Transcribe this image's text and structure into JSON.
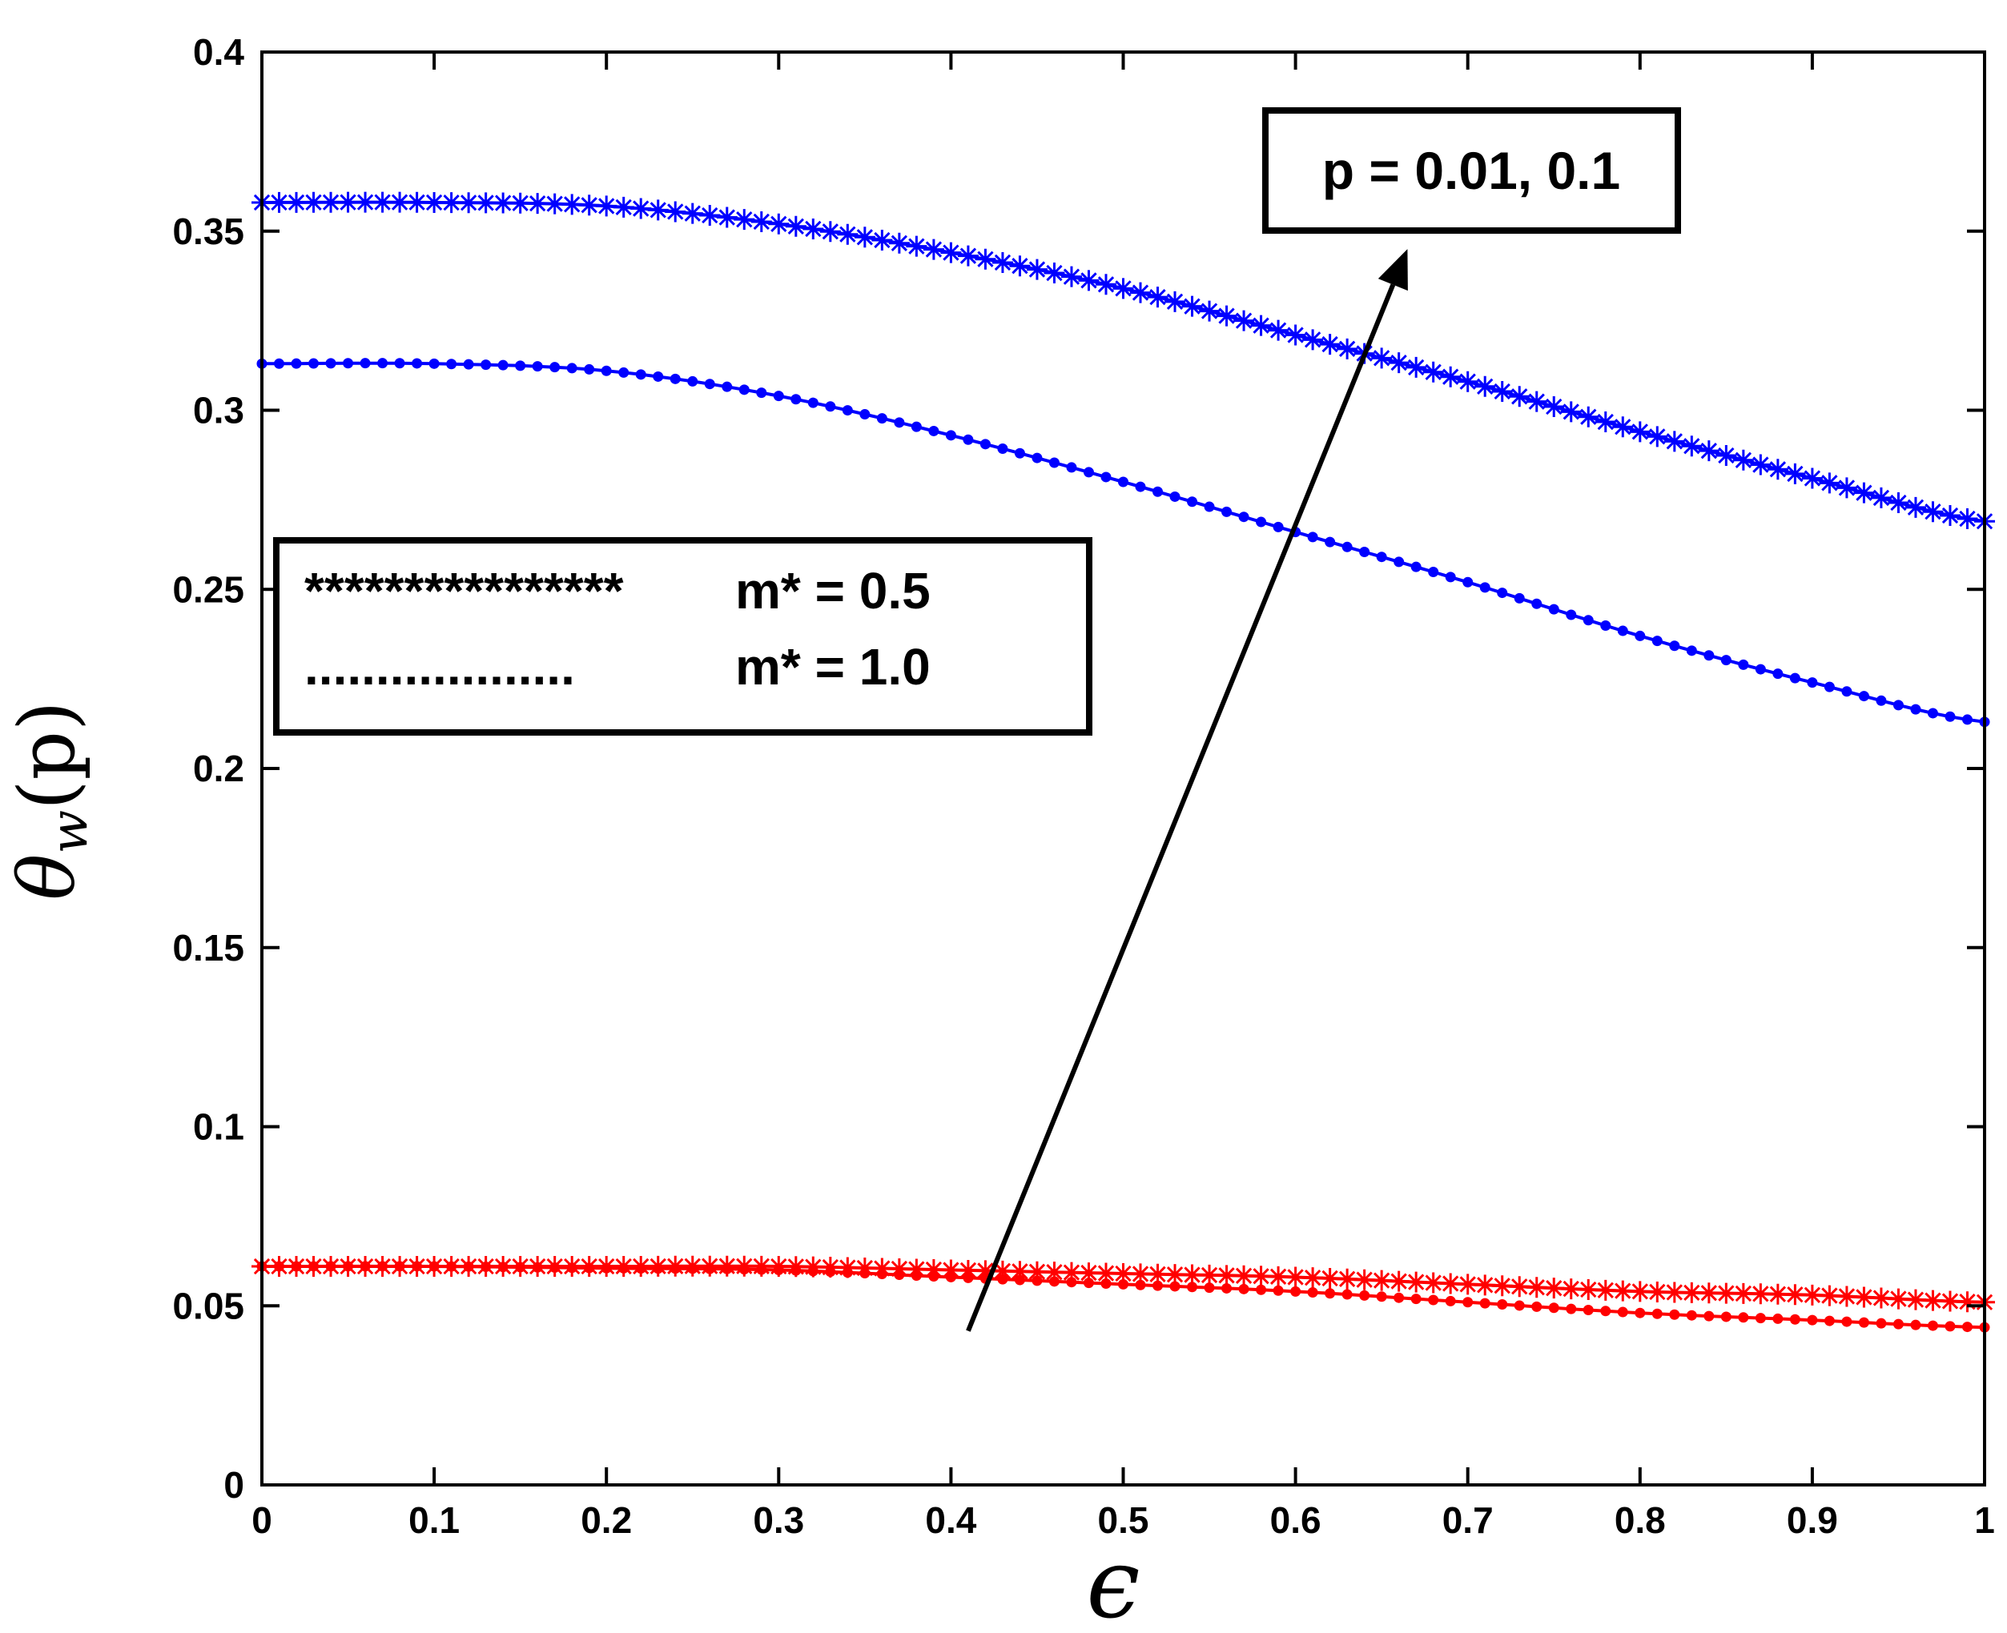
{
  "chart_data": {
    "type": "line",
    "title": "",
    "xlabel": "ϵ",
    "ylabel": "θ",
    "ylabel_sub": "w",
    "ylabel_arg": "(p)",
    "xlim": [
      0,
      1
    ],
    "ylim": [
      0,
      0.4
    ],
    "xticks": [
      0,
      0.1,
      0.2,
      0.3,
      0.4,
      0.5,
      0.6,
      0.7,
      0.8,
      0.9,
      1
    ],
    "xtick_labels": [
      "0",
      "0.1",
      "0.2",
      "0.3",
      "0.4",
      "0.5",
      "0.6",
      "0.7",
      "0.8",
      "0.9",
      "1"
    ],
    "yticks": [
      0,
      0.05,
      0.1,
      0.15,
      0.2,
      0.25,
      0.3,
      0.35,
      0.4
    ],
    "ytick_labels": [
      "0",
      "0.05",
      "0.1",
      "0.15",
      "0.2",
      "0.25",
      "0.3",
      "0.35",
      "0.4"
    ],
    "grid": false,
    "legend": {
      "position": "left-middle",
      "entries": [
        {
          "marker_text": "****************",
          "label": "m* = 0.5"
        },
        {
          "marker_text": "...................",
          "label": "m* = 1.0"
        }
      ]
    },
    "annotation": {
      "text": "p = 0.01, 0.1",
      "arrow_from": [
        0.41,
        0.043
      ],
      "arrow_to": [
        0.665,
        0.345
      ]
    },
    "x": [
      0,
      0.1,
      0.2,
      0.3,
      0.4,
      0.5,
      0.6,
      0.7,
      0.8,
      0.9,
      1.0
    ],
    "series": [
      {
        "name": "p = 0.1, m* = 0.5",
        "color": "#0000ff",
        "marker": "star",
        "values": [
          0.358,
          0.358,
          0.357,
          0.352,
          0.344,
          0.334,
          0.321,
          0.308,
          0.294,
          0.281,
          0.269
        ]
      },
      {
        "name": "p = 0.1, m* = 1.0",
        "color": "#0000ff",
        "marker": "dot",
        "values": [
          0.313,
          0.313,
          0.311,
          0.304,
          0.293,
          0.28,
          0.266,
          0.252,
          0.237,
          0.224,
          0.213
        ]
      },
      {
        "name": "p = 0.01, m* = 0.5",
        "color": "#ff0000",
        "marker": "star",
        "values": [
          0.061,
          0.061,
          0.061,
          0.061,
          0.06,
          0.059,
          0.058,
          0.056,
          0.054,
          0.053,
          0.051
        ]
      },
      {
        "name": "p = 0.01, m* = 1.0",
        "color": "#ff0000",
        "marker": "dot",
        "values": [
          0.061,
          0.061,
          0.0605,
          0.06,
          0.058,
          0.056,
          0.054,
          0.051,
          0.048,
          0.046,
          0.044
        ]
      }
    ]
  }
}
